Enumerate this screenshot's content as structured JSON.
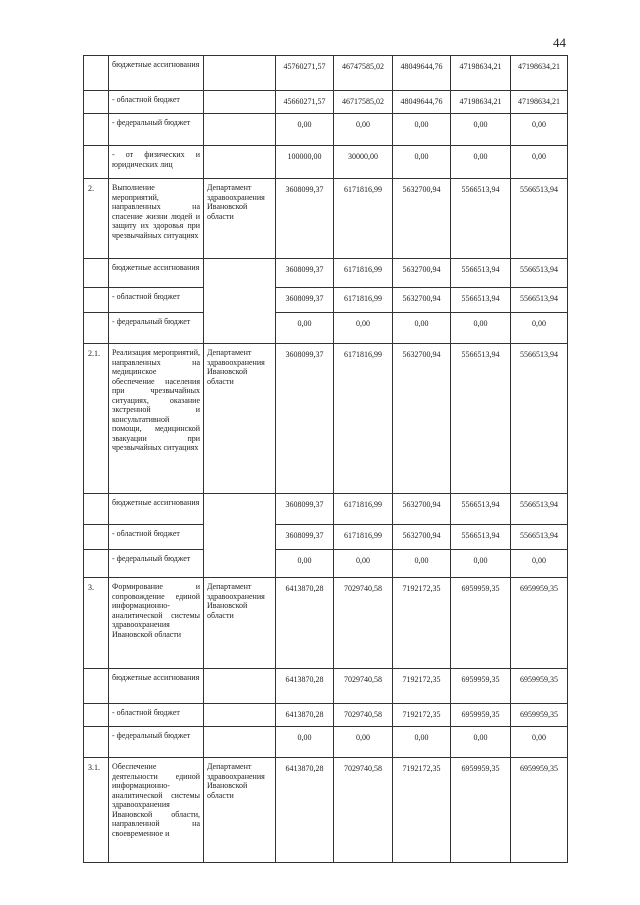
{
  "page_number": "44",
  "rows": [
    {
      "no": "",
      "desc": "бюджетные ассигнования",
      "resp": "",
      "values": [
        "45760271,57",
        "46747585,02",
        "48049644,76",
        "47198634,21",
        "47198634,21"
      ]
    },
    {
      "no": "",
      "desc": "- областной бюджет",
      "resp": "",
      "values": [
        "45660271,57",
        "46717585,02",
        "48049644,76",
        "47198634,21",
        "47198634,21"
      ]
    },
    {
      "no": "",
      "desc": "- федеральный бюджет",
      "resp": "",
      "values": [
        "0,00",
        "0,00",
        "0,00",
        "0,00",
        "0,00"
      ]
    },
    {
      "no": "",
      "desc": "- от физических и юридических лиц",
      "resp": "",
      "values": [
        "100000,00",
        "30000,00",
        "0,00",
        "0,00",
        "0,00"
      ]
    },
    {
      "no": "2.",
      "desc": "Выполнение мероприятий, направленных на спасение жизни людей и защиту их здоровья при чрезвычайных ситуациях",
      "resp": "Департамент здравоохранения Ивановской области",
      "values": [
        "3608099,37",
        "6171816,99",
        "5632700,94",
        "5566513,94",
        "5566513,94"
      ]
    },
    {
      "no": "",
      "desc": "бюджетные ассигнования",
      "resp": "",
      "values": [
        "3608099,37",
        "6171816,99",
        "5632700,94",
        "5566513,94",
        "5566513,94"
      ]
    },
    {
      "no": "",
      "desc": "- областной бюджет",
      "resp": "",
      "values": [
        "3608099,37",
        "6171816,99",
        "5632700,94",
        "5566513,94",
        "5566513,94"
      ]
    },
    {
      "no": "",
      "desc": "- федеральный бюджет",
      "resp": "",
      "values": [
        "0,00",
        "0,00",
        "0,00",
        "0,00",
        "0,00"
      ]
    },
    {
      "no": "2.1.",
      "desc": "Реализация мероприятий, направленных на медицинское обеспечение населения при чрезвычайных ситуациях, оказание экстренной и консультативной помощи, медицинской эвакуации при чрезвычайных ситуациях",
      "resp": "Департамент здравоохранения Ивановской области",
      "values": [
        "3608099,37",
        "6171816,99",
        "5632700,94",
        "5566513,94",
        "5566513,94"
      ]
    },
    {
      "no": "",
      "desc": "бюджетные ассигнования",
      "resp": "",
      "values": [
        "3608099,37",
        "6171816,99",
        "5632700,94",
        "5566513,94",
        "5566513,94"
      ]
    },
    {
      "no": "",
      "desc": "- областной бюджет",
      "resp": "",
      "values": [
        "3608099,37",
        "6171816,99",
        "5632700,94",
        "5566513,94",
        "5566513,94"
      ]
    },
    {
      "no": "",
      "desc": "- федеральный бюджет",
      "resp": "",
      "values": [
        "0,00",
        "0,00",
        "0,00",
        "0,00",
        "0,00"
      ]
    },
    {
      "no": "3.",
      "desc": "Формирование и сопровождение единой информационно-аналитической системы здравоохранения Ивановской области",
      "resp": "Департамент здравоохранения Ивановской области",
      "values": [
        "6413870,28",
        "7029740,58",
        "7192172,35",
        "6959959,35",
        "6959959,35"
      ]
    },
    {
      "no": "",
      "desc": "бюджетные ассигнования",
      "resp": "",
      "values": [
        "6413870,28",
        "7029740,58",
        "7192172,35",
        "6959959,35",
        "6959959,35"
      ]
    },
    {
      "no": "",
      "desc": "- областной бюджет",
      "resp": "",
      "values": [
        "6413870,28",
        "7029740,58",
        "7192172,35",
        "6959959,35",
        "6959959,35"
      ]
    },
    {
      "no": "",
      "desc": "- федеральный бюджет",
      "resp": "",
      "values": [
        "0,00",
        "0,00",
        "0,00",
        "0,00",
        "0,00"
      ]
    },
    {
      "no": "3.1.",
      "desc": "Обеспечение деятельности единой информационно-аналитической системы здравоохранения Ивановской области, направленной на своевременное и",
      "resp": "Департамент здравоохранения Ивановской области",
      "values": [
        "6413870,28",
        "7029740,58",
        "7192172,35",
        "6959959,35",
        "6959959,35"
      ]
    }
  ]
}
